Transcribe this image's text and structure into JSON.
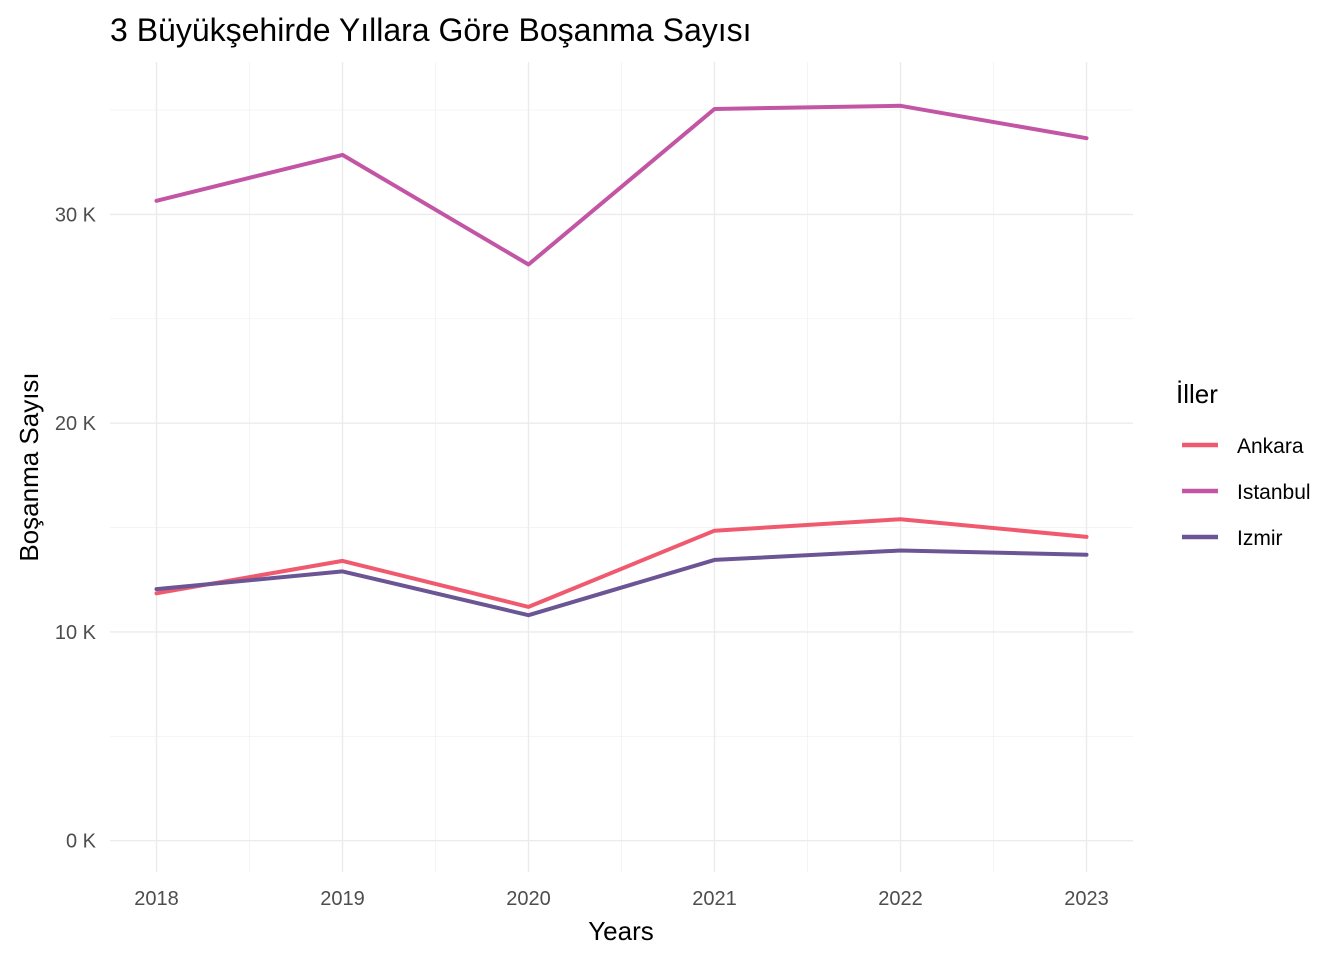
{
  "chart_data": {
    "type": "line",
    "title": "3 Büyükşehirde Yıllara Göre Boşanma Sayısı",
    "xlabel": "Years",
    "ylabel": "Boşanma Sayısı",
    "x": [
      2018,
      2019,
      2020,
      2021,
      2022,
      2023
    ],
    "x_tick_labels": [
      "2018",
      "2019",
      "2020",
      "2021",
      "2022",
      "2023"
    ],
    "y_ticks": [
      0,
      10000,
      20000,
      30000
    ],
    "y_tick_labels": [
      "0 K",
      "10 K",
      "20 K",
      "30 K"
    ],
    "ylim": [
      -1500,
      37300
    ],
    "xlim": [
      2017.75,
      2023.25
    ],
    "grid": true,
    "legend": {
      "title": "İller",
      "position": "right"
    },
    "series": [
      {
        "name": "Ankara",
        "color": "#f05a6e",
        "values": [
          11850,
          13400,
          11200,
          14850,
          15400,
          14550
        ]
      },
      {
        "name": "Istanbul",
        "color": "#c355a5",
        "values": [
          30650,
          32850,
          27600,
          35050,
          35200,
          33650
        ]
      },
      {
        "name": "Izmir",
        "color": "#6b5594",
        "values": [
          12050,
          12900,
          10800,
          13450,
          13900,
          13700
        ]
      }
    ]
  }
}
